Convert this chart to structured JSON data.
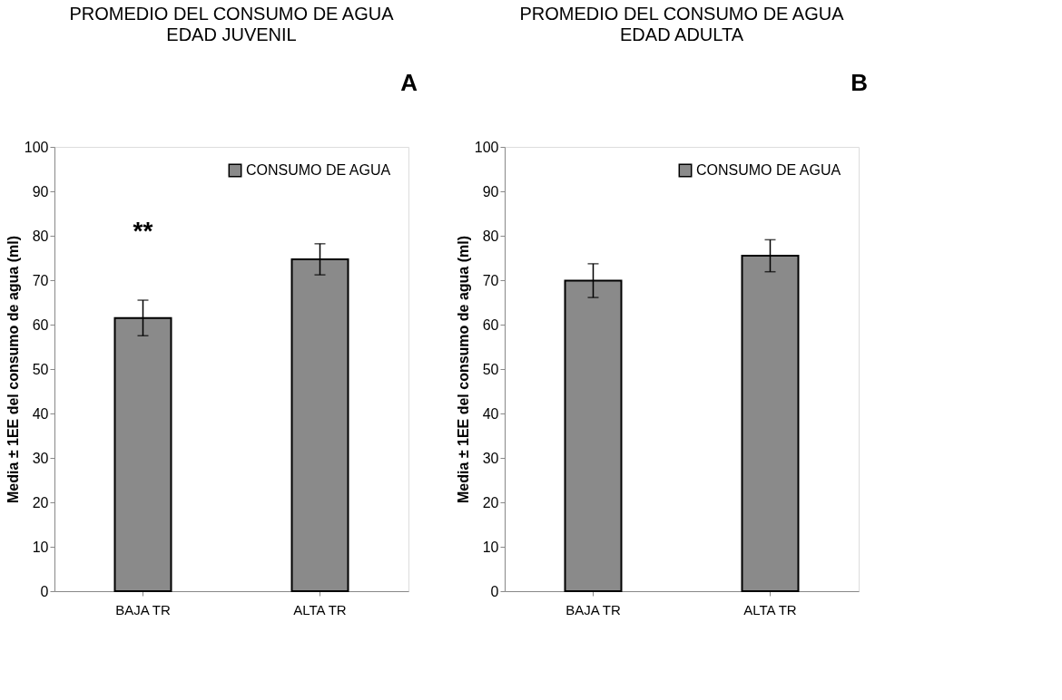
{
  "chart_data": [
    {
      "type": "bar",
      "title": "PROMEDIO DEL CONSUMO DE AGUA",
      "subtitle": "EDAD JUVENIL",
      "ylabel": "Media ± 1EE del consumo de agua (ml)",
      "categories": [
        "BAJA TR",
        "ALTA TR"
      ],
      "series": [
        {
          "name": "CONSUMO DE AGUA",
          "color": "#8a8a8a",
          "values": [
            61.5,
            74.7
          ],
          "errors": [
            4.0,
            3.5
          ]
        }
      ],
      "ylim": [
        0,
        100
      ],
      "yticks": [
        0,
        10,
        20,
        30,
        40,
        50,
        60,
        70,
        80,
        90,
        100
      ],
      "grid": false,
      "legend": "top right",
      "annotations": [
        "A",
        "**"
      ]
    },
    {
      "type": "bar",
      "title": "PROMEDIO DEL CONSUMO DE AGUA",
      "subtitle": "EDAD ADULTA",
      "ylabel": "Media ± 1EE del consumo de agua (ml)",
      "categories": [
        "BAJA TR",
        "ALTA TR"
      ],
      "series": [
        {
          "name": "CONSUMO DE AGUA",
          "color": "#8a8a8a",
          "values": [
            69.9,
            75.5
          ],
          "errors": [
            3.8,
            3.6
          ]
        }
      ],
      "ylim": [
        0,
        100
      ],
      "yticks": [
        0,
        10,
        20,
        30,
        40,
        50,
        60,
        70,
        80,
        90,
        100
      ],
      "grid": false,
      "legend": "top right",
      "annotations": [
        "B"
      ]
    }
  ]
}
